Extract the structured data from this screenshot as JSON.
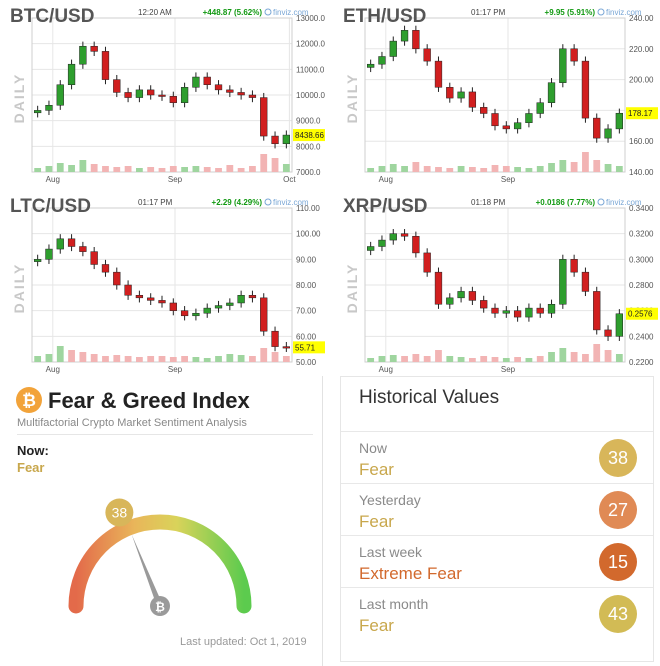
{
  "colors": {
    "up": "#2e9e2e",
    "down": "#d11f1f",
    "grid": "#e6e6e6",
    "highlight": "#ffff00",
    "greenVol": "#9fd59f",
    "redVol": "#f2b4b4",
    "watermark": "#c8c8c8",
    "text": "#555555",
    "positive": "#119911"
  },
  "charts": [
    {
      "symbol": "BTC/USD",
      "watermark": "DAILY",
      "time": "12:20 AM",
      "change": "+448.87 (5.62%)",
      "source": "finviz.com",
      "last_label": "8438.66",
      "last_value": 8438.66,
      "x_labels": [
        "Aug",
        "Sep",
        "Oct"
      ],
      "x_label_pos": [
        0.08,
        0.55,
        0.99
      ],
      "y_ticks": [
        "13000.0",
        "12000.0",
        "11000.0",
        "10000.0",
        "9000.0",
        "8000.0",
        "7000.0"
      ],
      "y_range": [
        7000,
        13000
      ],
      "closes": [
        9400,
        9600,
        10400,
        11200,
        11900,
        11700,
        10600,
        10100,
        9900,
        10200,
        10000,
        9950,
        9700,
        10300,
        10700,
        10400,
        10200,
        10100,
        10000,
        9900,
        8400,
        8100,
        8438.66
      ],
      "volumes": [
        0.2,
        0.3,
        0.45,
        0.35,
        0.6,
        0.4,
        0.3,
        0.25,
        0.3,
        0.2,
        0.25,
        0.2,
        0.3,
        0.25,
        0.3,
        0.25,
        0.2,
        0.35,
        0.2,
        0.3,
        0.9,
        0.7,
        0.4
      ]
    },
    {
      "symbol": "ETH/USD",
      "watermark": "DAILY",
      "time": "01:17 PM",
      "change": "+9.95 (5.91%)",
      "source": "finviz.com",
      "last_label": "178.17",
      "last_value": 178.17,
      "x_labels": [
        "Aug",
        "Sep"
      ],
      "x_label_pos": [
        0.08,
        0.55
      ],
      "y_ticks": [
        "240.00",
        "220.00",
        "200.00",
        "180.00",
        "160.00",
        "140.00"
      ],
      "y_range": [
        140,
        240
      ],
      "closes": [
        210,
        215,
        225,
        232,
        220,
        212,
        195,
        188,
        192,
        182,
        178,
        170,
        168,
        172,
        178,
        185,
        198,
        220,
        212,
        175,
        162,
        168,
        178.17
      ],
      "volumes": [
        0.2,
        0.3,
        0.4,
        0.3,
        0.5,
        0.3,
        0.25,
        0.2,
        0.3,
        0.25,
        0.2,
        0.35,
        0.3,
        0.25,
        0.2,
        0.3,
        0.45,
        0.6,
        0.5,
        1.0,
        0.6,
        0.4,
        0.3
      ]
    },
    {
      "symbol": "LTC/USD",
      "watermark": "DAILY",
      "time": "01:17 PM",
      "change": "+2.29 (4.29%)",
      "source": "finviz.com",
      "last_label": "55.71",
      "last_value": 55.71,
      "x_labels": [
        "Aug",
        "Sep"
      ],
      "x_label_pos": [
        0.08,
        0.55
      ],
      "y_ticks": [
        "110.00",
        "100.00",
        "90.00",
        "80.00",
        "70.00",
        "60.00",
        "50.00"
      ],
      "y_range": [
        50,
        110
      ],
      "closes": [
        90,
        94,
        98,
        95,
        93,
        88,
        85,
        80,
        76,
        75,
        74,
        73,
        70,
        68,
        69,
        71,
        72,
        73,
        76,
        75,
        62,
        56,
        55.71
      ],
      "volumes": [
        0.3,
        0.4,
        0.8,
        0.6,
        0.5,
        0.4,
        0.3,
        0.35,
        0.3,
        0.25,
        0.3,
        0.3,
        0.25,
        0.3,
        0.25,
        0.2,
        0.3,
        0.4,
        0.35,
        0.3,
        0.7,
        0.5,
        0.3
      ]
    },
    {
      "symbol": "XRP/USD",
      "watermark": "DAILY",
      "time": "01:18 PM",
      "change": "+0.0186 (7.77%)",
      "source": "finviz.com",
      "last_label": "0.2576",
      "last_value": 0.2576,
      "x_labels": [
        "Aug",
        "Sep"
      ],
      "x_label_pos": [
        0.08,
        0.55
      ],
      "y_ticks": [
        "0.3400",
        "0.3200",
        "0.3000",
        "0.2800",
        "0.2600",
        "0.2400",
        "0.2200"
      ],
      "y_range": [
        0.22,
        0.34
      ],
      "closes": [
        0.31,
        0.315,
        0.32,
        0.318,
        0.305,
        0.29,
        0.265,
        0.27,
        0.275,
        0.268,
        0.262,
        0.258,
        0.26,
        0.255,
        0.262,
        0.258,
        0.265,
        0.3,
        0.29,
        0.275,
        0.245,
        0.24,
        0.2576
      ],
      "volumes": [
        0.2,
        0.3,
        0.35,
        0.3,
        0.4,
        0.3,
        0.6,
        0.3,
        0.25,
        0.2,
        0.3,
        0.25,
        0.2,
        0.25,
        0.2,
        0.3,
        0.5,
        0.7,
        0.5,
        0.4,
        0.9,
        0.6,
        0.4
      ]
    }
  ],
  "fear_greed": {
    "title": "Fear & Greed Index",
    "subtitle": "Multifactorial Crypto Market Sentiment Analysis",
    "now_label": "Now:",
    "now_value": "Fear",
    "index": 38,
    "index_label": "38",
    "last_updated": "Last updated: Oct 1, 2019",
    "logo_icon": "bitcoin-icon"
  },
  "historical": {
    "title": "Historical Values",
    "rows": [
      {
        "label": "Now",
        "value": "Fear",
        "score": "38",
        "value_color": "#c8a74c",
        "badge_color": "#d8b65a"
      },
      {
        "label": "Yesterday",
        "value": "Fear",
        "score": "27",
        "value_color": "#c8a74c",
        "badge_color": "#e08a55"
      },
      {
        "label": "Last week",
        "value": "Extreme Fear",
        "score": "15",
        "value_color": "#d2692d",
        "badge_color": "#d2692d"
      },
      {
        "label": "Last month",
        "value": "Fear",
        "score": "43",
        "value_color": "#c8a74c",
        "badge_color": "#d2bb55"
      }
    ]
  },
  "chart_data": [
    {
      "type": "candlestick",
      "title": "BTC/USD",
      "ylim": [
        7000,
        13000
      ],
      "x_ticks": [
        "Aug",
        "Sep",
        "Oct"
      ],
      "series": [
        {
          "values": [
            9400,
            9600,
            10400,
            11200,
            11900,
            11700,
            10600,
            10100,
            9900,
            10200,
            10000,
            9950,
            9700,
            10300,
            10700,
            10400,
            10200,
            10100,
            10000,
            9900,
            8400,
            8100,
            8438.66
          ]
        }
      ]
    },
    {
      "type": "candlestick",
      "title": "ETH/USD",
      "ylim": [
        140,
        240
      ],
      "x_ticks": [
        "Aug",
        "Sep"
      ],
      "series": [
        {
          "values": [
            210,
            215,
            225,
            232,
            220,
            212,
            195,
            188,
            192,
            182,
            178,
            170,
            168,
            172,
            178,
            185,
            198,
            220,
            212,
            175,
            162,
            168,
            178.17
          ]
        }
      ]
    },
    {
      "type": "candlestick",
      "title": "LTC/USD",
      "ylim": [
        50,
        110
      ],
      "x_ticks": [
        "Aug",
        "Sep"
      ],
      "series": [
        {
          "values": [
            90,
            94,
            98,
            95,
            93,
            88,
            85,
            80,
            76,
            75,
            74,
            73,
            70,
            68,
            69,
            71,
            72,
            73,
            76,
            75,
            62,
            56,
            55.71
          ]
        }
      ]
    },
    {
      "type": "candlestick",
      "title": "XRP/USD",
      "ylim": [
        0.22,
        0.34
      ],
      "x_ticks": [
        "Aug",
        "Sep"
      ],
      "series": [
        {
          "values": [
            0.31,
            0.315,
            0.32,
            0.318,
            0.305,
            0.29,
            0.265,
            0.27,
            0.275,
            0.268,
            0.262,
            0.258,
            0.26,
            0.255,
            0.262,
            0.258,
            0.265,
            0.3,
            0.29,
            0.275,
            0.245,
            0.24,
            0.2576
          ]
        }
      ]
    },
    {
      "type": "gauge",
      "title": "Fear & Greed Index",
      "value": 38,
      "range": [
        0,
        100
      ]
    }
  ]
}
